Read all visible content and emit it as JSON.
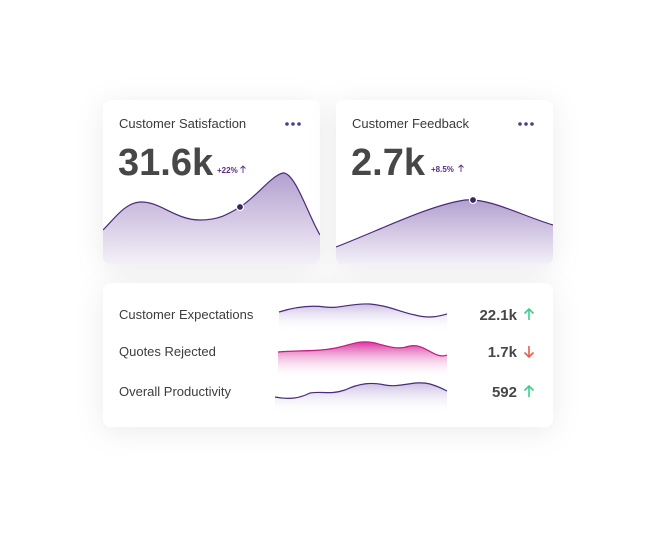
{
  "cards": [
    {
      "title": "Customer Satisfaction",
      "value": "31.6k",
      "change": "+22%"
    },
    {
      "title": "Customer Feedback",
      "value": "2.7k",
      "change": "+8.5%"
    }
  ],
  "metrics": [
    {
      "label": "Customer Expectations",
      "value": "22.1k"
    },
    {
      "label": "Quotes Rejected",
      "value": "1.7k"
    },
    {
      "label": "Overall Productivity",
      "value": "592"
    }
  ]
}
